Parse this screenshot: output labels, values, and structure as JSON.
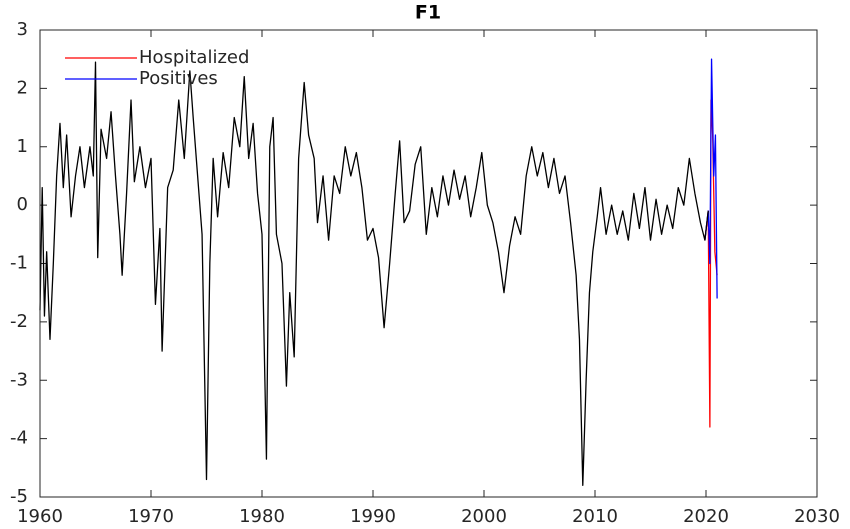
{
  "chart_data": {
    "type": "line",
    "title": "F1",
    "legend": "upper left",
    "xlim": [
      1960,
      2030
    ],
    "xticks": [
      1960,
      1970,
      1980,
      1990,
      2000,
      2010,
      2020,
      2030
    ],
    "ylim": [
      -5,
      3
    ],
    "yticks": [
      -5,
      -4,
      -3,
      -2,
      -1,
      0,
      1,
      2,
      3
    ],
    "series": [
      {
        "name": "Hospitalized",
        "color": "#ff0000",
        "x": [
          2019.9,
          2020.2,
          2020.35,
          2020.45,
          2020.6,
          2020.8,
          2021
        ],
        "values": [
          -0.6,
          -0.1,
          -3.8,
          1.8,
          1.2,
          -0.8,
          -1.2
        ]
      },
      {
        "name": "Positives",
        "color": "#0000ff",
        "x": [
          2019.9,
          2020.2,
          2020.35,
          2020.5,
          2020.7,
          2020.85,
          2021
        ],
        "values": [
          -0.6,
          -0.1,
          -1.0,
          2.5,
          0.5,
          1.2,
          -1.6
        ]
      },
      {
        "color": "#000000",
        "x": [
          1960,
          1960.2,
          1960.4,
          1960.6,
          1960.9,
          1961.2,
          1961.5,
          1961.8,
          1962.1,
          1962.4,
          1962.8,
          1963.2,
          1963.6,
          1964,
          1964.5,
          1964.8,
          1965,
          1965.2,
          1965.5,
          1966,
          1966.4,
          1966.8,
          1967.2,
          1967.4,
          1967.8,
          1968.2,
          1968.5,
          1969,
          1969.5,
          1970,
          1970.4,
          1970.8,
          1971,
          1971.5,
          1972,
          1972.5,
          1973,
          1973.5,
          1973.8,
          1974.2,
          1974.6,
          1975,
          1975.3,
          1975.6,
          1976,
          1976.5,
          1977,
          1977.5,
          1978,
          1978.4,
          1978.8,
          1979.2,
          1979.6,
          1980,
          1980.4,
          1980.7,
          1981,
          1981.3,
          1981.8,
          1982.2,
          1982.5,
          1982.9,
          1983.3,
          1983.8,
          1984.2,
          1984.7,
          1985,
          1985.5,
          1986,
          1986.5,
          1987,
          1987.5,
          1988,
          1988.5,
          1989,
          1989.5,
          1990,
          1990.5,
          1991,
          1991.5,
          1992,
          1992.4,
          1992.8,
          1993.3,
          1993.8,
          1994.3,
          1994.8,
          1995.3,
          1995.8,
          1996.3,
          1996.8,
          1997.3,
          1997.8,
          1998.3,
          1998.8,
          1999.3,
          1999.8,
          2000.3,
          2000.8,
          2001.3,
          2001.8,
          2002.3,
          2002.8,
          2003.3,
          2003.8,
          2004.3,
          2004.8,
          2005.3,
          2005.8,
          2006.3,
          2006.8,
          2007.3,
          2007.8,
          2008.3,
          2008.6,
          2008.9,
          2009.2,
          2009.5,
          2009.8,
          2010.2,
          2010.5,
          2011,
          2011.5,
          2012,
          2012.5,
          2013,
          2013.5,
          2014,
          2014.5,
          2015,
          2015.5,
          2016,
          2016.5,
          2017,
          2017.5,
          2018,
          2018.5,
          2019,
          2019.5,
          2019.9,
          2020.2
        ],
        "values": [
          -1.8,
          0.3,
          -1.9,
          -0.8,
          -2.3,
          -1.0,
          0.5,
          1.4,
          0.3,
          1.2,
          -0.2,
          0.5,
          1.0,
          0.3,
          1.0,
          0.5,
          2.45,
          -0.9,
          1.3,
          0.8,
          1.6,
          0.5,
          -0.5,
          -1.2,
          0.2,
          1.8,
          0.4,
          1.0,
          0.3,
          0.8,
          -1.7,
          -0.4,
          -2.5,
          0.3,
          0.6,
          1.8,
          0.8,
          2.3,
          1.5,
          0.5,
          -0.5,
          -4.7,
          -1.0,
          0.8,
          -0.2,
          0.9,
          0.3,
          1.5,
          1.0,
          2.2,
          0.8,
          1.4,
          0.2,
          -0.5,
          -4.35,
          1.0,
          1.5,
          -0.5,
          -1.0,
          -3.1,
          -1.5,
          -2.6,
          0.8,
          2.1,
          1.2,
          0.8,
          -0.3,
          0.5,
          -0.6,
          0.5,
          0.2,
          1.0,
          0.5,
          0.9,
          0.3,
          -0.6,
          -0.4,
          -0.9,
          -2.1,
          -1.0,
          0.2,
          1.1,
          -0.3,
          -0.1,
          0.7,
          1.0,
          -0.5,
          0.3,
          -0.2,
          0.5,
          0.0,
          0.6,
          0.1,
          0.5,
          -0.2,
          0.3,
          0.9,
          0.0,
          -0.3,
          -0.8,
          -1.5,
          -0.7,
          -0.2,
          -0.5,
          0.5,
          1.0,
          0.5,
          0.9,
          0.3,
          0.8,
          0.2,
          0.5,
          -0.3,
          -1.2,
          -2.3,
          -4.8,
          -3.0,
          -1.5,
          -0.8,
          -0.2,
          0.3,
          -0.5,
          0.0,
          -0.5,
          -0.1,
          -0.6,
          0.2,
          -0.4,
          0.3,
          -0.6,
          0.1,
          -0.5,
          0.0,
          -0.4,
          0.3,
          0.0,
          0.8,
          0.2,
          -0.3,
          -0.6,
          -0.1
        ]
      }
    ]
  }
}
